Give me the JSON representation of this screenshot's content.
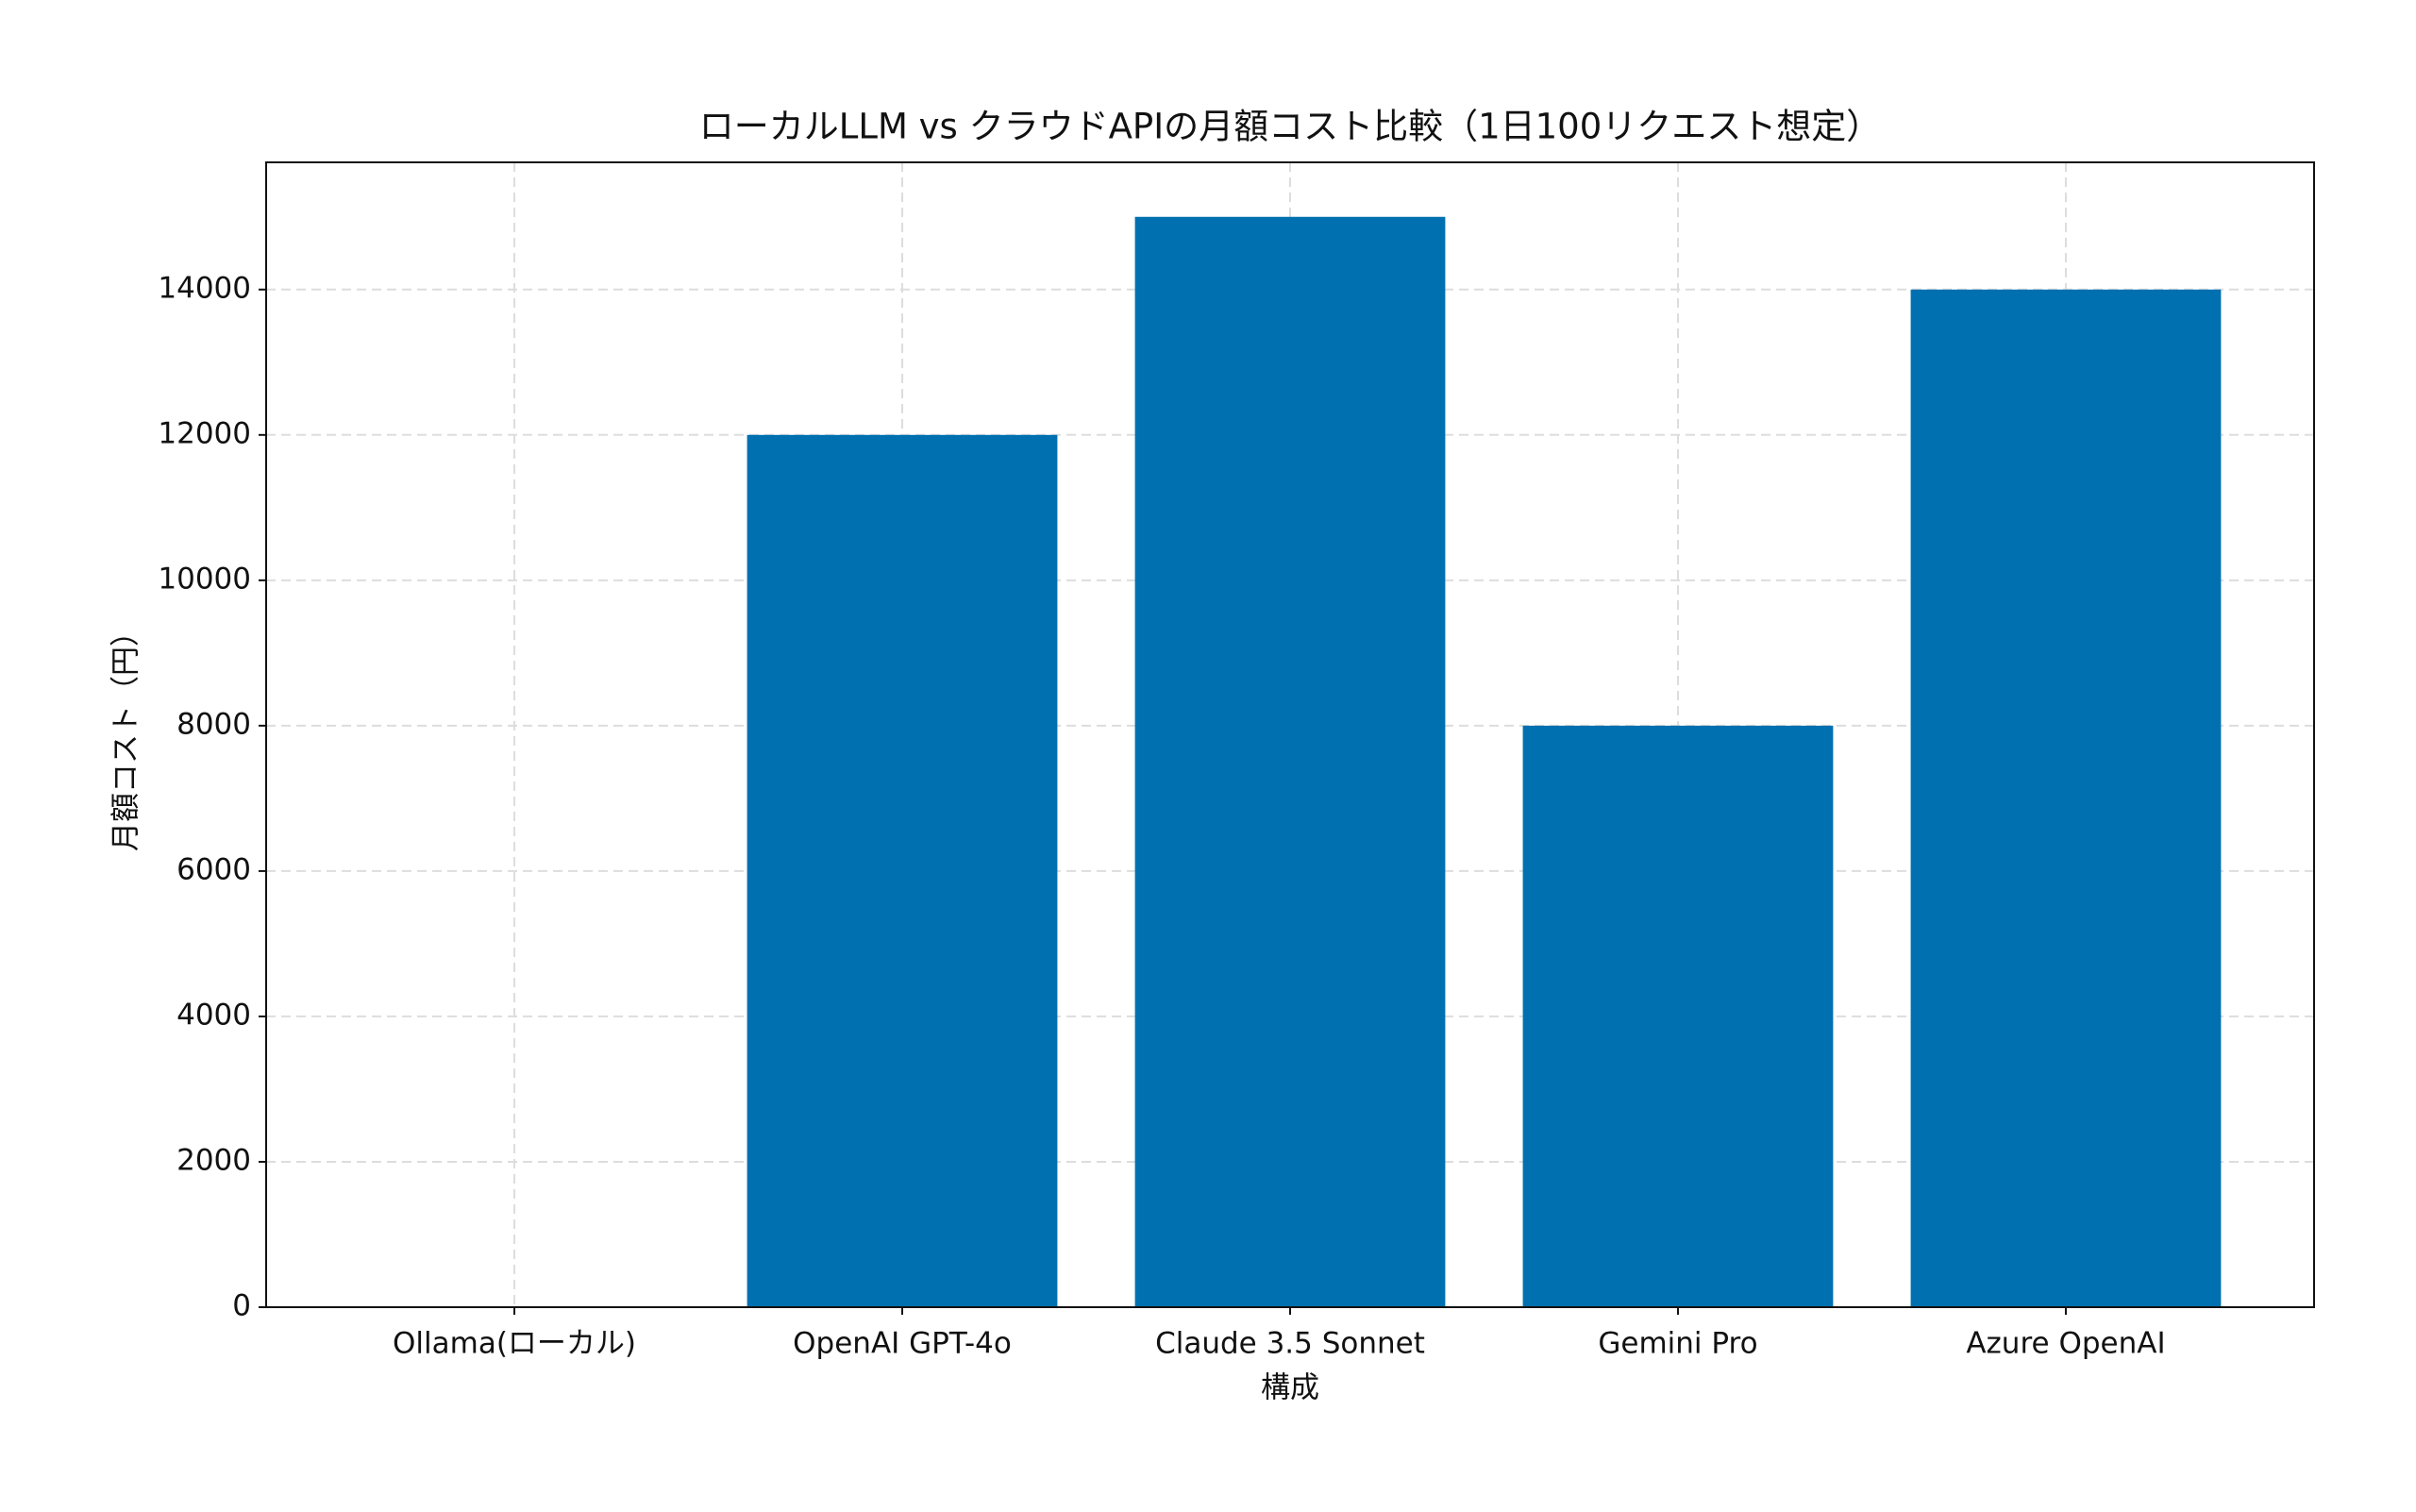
{
  "chart_data": {
    "type": "bar",
    "title": "ローカルLLM vs クラウドAPIの月額コスト比較（1日100リクエスト想定）",
    "xlabel": "構成",
    "ylabel": "月額コスト（円）",
    "categories": [
      "Ollama(ローカル)",
      "OpenAI GPT-4o",
      "Claude 3.5 Sonnet",
      "Gemini Pro",
      "Azure OpenAI"
    ],
    "values": [
      0,
      12000,
      15000,
      8000,
      14000
    ],
    "color": "#0070b0",
    "ylim": [
      0,
      15750
    ],
    "yticks": [
      0,
      2000,
      4000,
      6000,
      8000,
      10000,
      12000,
      14000
    ],
    "grid": true
  }
}
